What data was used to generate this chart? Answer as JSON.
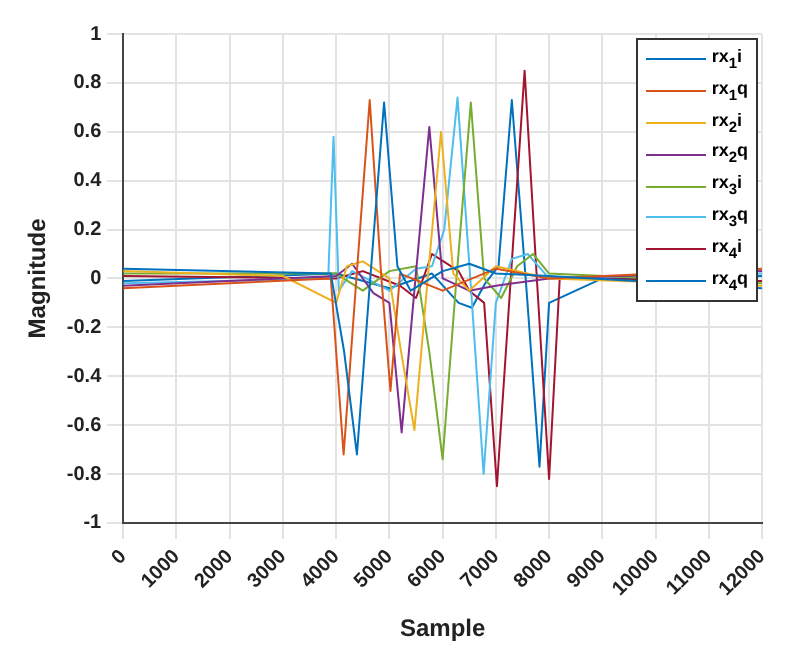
{
  "chart_data": {
    "type": "line",
    "xlabel": "Sample",
    "ylabel": "Magnitude",
    "xlim": [
      0,
      12000
    ],
    "xticks": [
      0,
      1000,
      2000,
      3000,
      4000,
      5000,
      6000,
      7000,
      8000,
      9000,
      10000,
      11000,
      12000
    ],
    "ylim": [
      -1,
      1
    ],
    "yticks": [
      -1,
      -0.8,
      -0.6,
      -0.4,
      -0.2,
      0,
      0.2,
      0.4,
      0.6,
      0.8,
      1
    ],
    "grid": true,
    "legend": "top right",
    "marker": "none",
    "line_style": "solid",
    "series": [
      {
        "name": "rx$_{1}$i",
        "color": "#0072bd",
        "x": [
          0,
          3900,
          4150,
          4390,
          4640,
          4900,
          5150,
          5400,
          6000,
          6500,
          7000,
          8000,
          12000
        ],
        "values": [
          0.04,
          0.02,
          -0.3,
          -0.72,
          0,
          0.72,
          0.05,
          -0.05,
          0.03,
          0.06,
          0.02,
          0.01,
          -0.04
        ]
      },
      {
        "name": "rx$_{1}$q",
        "color": "#d95319",
        "x": [
          0,
          3900,
          4140,
          4380,
          4630,
          4850,
          5020,
          5200,
          6000,
          7000,
          8000,
          12000
        ],
        "values": [
          -0.04,
          0,
          -0.72,
          0,
          0.73,
          0,
          -0.46,
          0.02,
          -0.05,
          0.04,
          0,
          0.04
        ]
      },
      {
        "name": "rx$_{2}$i",
        "color": "#edb120",
        "x": [
          0,
          3000,
          4000,
          4200,
          4500,
          5000,
          5220,
          5470,
          5720,
          5970,
          6200,
          6500,
          7000,
          8000,
          12000
        ],
        "values": [
          0.03,
          0.01,
          -0.1,
          0.05,
          0.07,
          0,
          -0.3,
          -0.62,
          0,
          0.6,
          0.02,
          -0.05,
          0.05,
          0,
          -0.03
        ]
      },
      {
        "name": "rx$_{2}$q",
        "color": "#7e2f8e",
        "x": [
          0,
          4000,
          4300,
          4700,
          5000,
          5230,
          5490,
          5750,
          6000,
          6500,
          7000,
          8000,
          12000
        ],
        "values": [
          -0.03,
          0.01,
          0.06,
          -0.06,
          -0.1,
          -0.63,
          0,
          0.62,
          0,
          -0.05,
          -0.03,
          0,
          0.03
        ]
      },
      {
        "name": "rx$_{3}$i",
        "color": "#77ac30",
        "x": [
          0,
          4000,
          4500,
          5000,
          5500,
          5750,
          6000,
          6260,
          6530,
          6780,
          7100,
          7400,
          7700,
          8000,
          12000
        ],
        "values": [
          0.02,
          0.02,
          -0.05,
          0.03,
          0.05,
          -0.3,
          -0.74,
          0,
          0.72,
          0,
          -0.08,
          0.05,
          0.1,
          0.02,
          -0.02
        ]
      },
      {
        "name": "rx$_{3}$q",
        "color": "#4dbeee",
        "x": [
          0,
          3850,
          3950,
          4050,
          4300,
          5000,
          5500,
          5800,
          6030,
          6280,
          6520,
          6770,
          7000,
          7300,
          7600,
          8000,
          12000
        ],
        "values": [
          -0.02,
          0,
          0.58,
          -0.05,
          0.03,
          -0.05,
          0.04,
          0.05,
          0.2,
          0.74,
          0,
          -0.8,
          -0.1,
          0.08,
          0.1,
          0,
          0.02
        ]
      },
      {
        "name": "rx$_{4}$i",
        "color": "#a2142f",
        "x": [
          0,
          4000,
          4500,
          5200,
          5500,
          5800,
          6300,
          6500,
          6780,
          7020,
          7280,
          7540,
          7770,
          8000,
          8200,
          12000
        ],
        "values": [
          0.01,
          0,
          0.03,
          -0.03,
          -0.08,
          0.1,
          0.03,
          -0.05,
          -0.1,
          -0.85,
          0,
          0.85,
          0,
          -0.82,
          0,
          -0.01
        ]
      },
      {
        "name": "rx$_{4}$q",
        "color": "#0072bd",
        "x": [
          0,
          4000,
          5000,
          5800,
          6300,
          6550,
          6800,
          7050,
          7300,
          7560,
          7820,
          8000,
          9000,
          12000
        ],
        "values": [
          -0.01,
          0.02,
          -0.04,
          0.02,
          -0.1,
          -0.12,
          -0.02,
          0.05,
          0.73,
          0,
          -0.77,
          -0.1,
          0,
          0.01
        ]
      }
    ]
  }
}
